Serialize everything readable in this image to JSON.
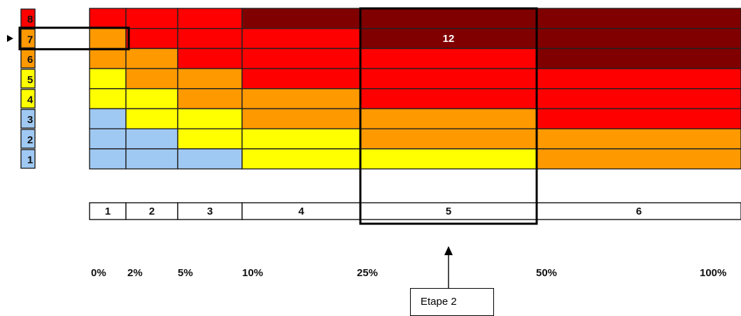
{
  "colors": {
    "light_blue": "#9fc9f3",
    "yellow": "#ffff00",
    "orange": "#ff9900",
    "red": "#ff0000",
    "dark_red": "#800000"
  },
  "risk_levels": [
    {
      "label": "8",
      "color": "#ff0000"
    },
    {
      "label": "7",
      "color": "#ff9900"
    },
    {
      "label": "6",
      "color": "#ff9900"
    },
    {
      "label": "5",
      "color": "#ffff00"
    },
    {
      "label": "4",
      "color": "#ffff00"
    },
    {
      "label": "3",
      "color": "#9fc9f3"
    },
    {
      "label": "2",
      "color": "#9fc9f3"
    },
    {
      "label": "1",
      "color": "#9fc9f3"
    }
  ],
  "selected_level": "7",
  "steps": [
    "1",
    "2",
    "3",
    "4",
    "5",
    "6"
  ],
  "selected_step": "5",
  "percent_labels": [
    "0%",
    "2%",
    "5%",
    "10%",
    "25%",
    "50%",
    "100%"
  ],
  "grid": {
    "cell_value": "12",
    "colors_by_level_and_step": [
      [
        "red",
        "red",
        "red",
        "dark_red",
        "dark_red",
        "dark_red"
      ],
      [
        "orange",
        "red",
        "red",
        "red",
        "dark_red",
        "dark_red"
      ],
      [
        "orange",
        "orange",
        "red",
        "red",
        "red",
        "dark_red"
      ],
      [
        "yellow",
        "orange",
        "orange",
        "red",
        "red",
        "red"
      ],
      [
        "yellow",
        "yellow",
        "orange",
        "orange",
        "red",
        "red"
      ],
      [
        "light_blue",
        "yellow",
        "yellow",
        "orange",
        "orange",
        "red"
      ],
      [
        "light_blue",
        "light_blue",
        "yellow",
        "yellow",
        "orange",
        "orange"
      ],
      [
        "light_blue",
        "light_blue",
        "light_blue",
        "yellow",
        "yellow",
        "orange"
      ]
    ]
  },
  "callout": {
    "label": "Etape 2"
  }
}
